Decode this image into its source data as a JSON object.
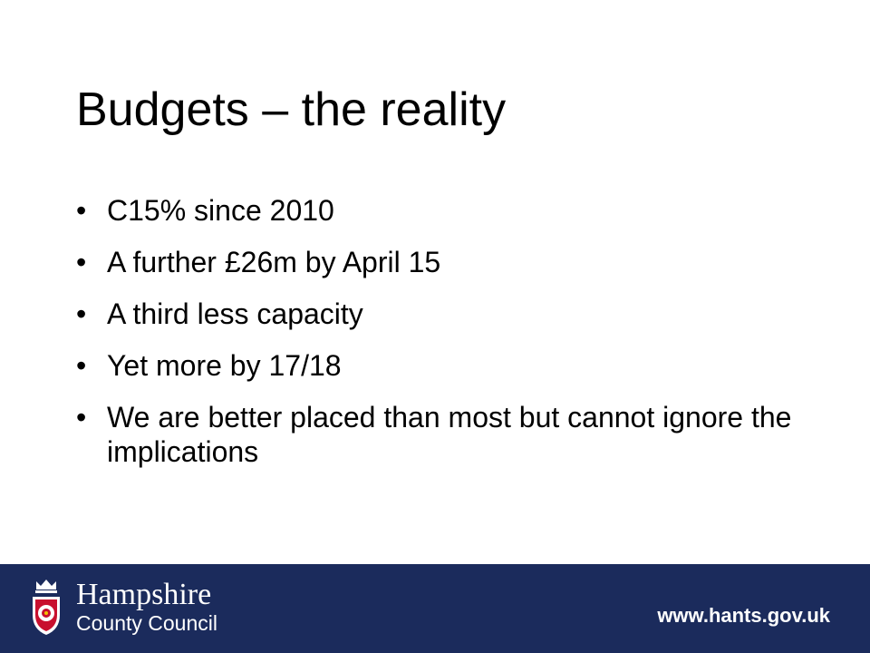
{
  "slide": {
    "title": "Budgets – the reality",
    "bullet_marker": "•",
    "bullets": [
      "C15% since 2010",
      "A further £26m by April 15",
      "A third less capacity",
      "Yet more by 17/18",
      "We are better placed than most but cannot ignore the implications"
    ]
  },
  "footer": {
    "organisation_name": "Hampshire",
    "organisation_sub": "County Council",
    "website": "www.hants.gov.uk",
    "background_color": "#1b2b5c",
    "crest_icon": "county-crest-icon"
  }
}
